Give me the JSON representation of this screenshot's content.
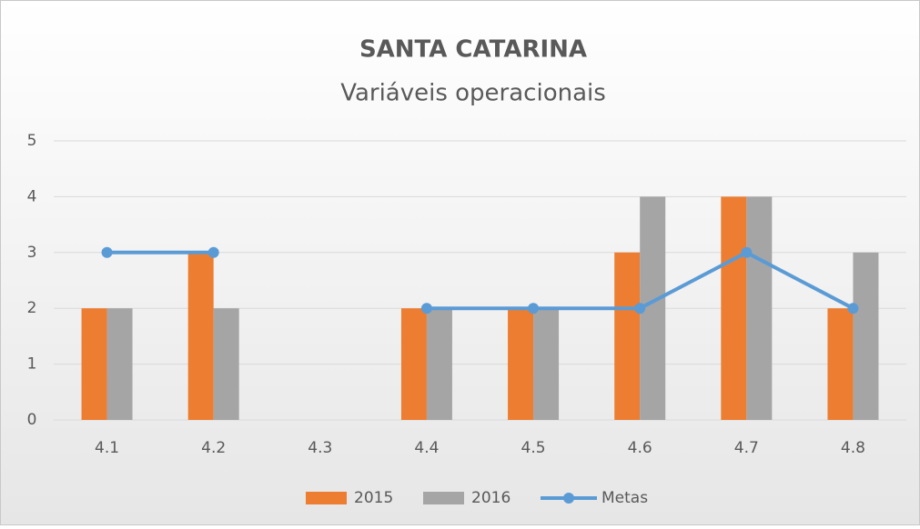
{
  "chart_data": {
    "type": "bar",
    "title": "SANTA CATARINA",
    "subtitle": "Variáveis operacionais",
    "categories": [
      "4.1",
      "4.2",
      "4.3",
      "4.4",
      "4.5",
      "4.6",
      "4.7",
      "4.8"
    ],
    "series": [
      {
        "name": "2015",
        "type": "bar",
        "color": "#ed7d31",
        "values": [
          2,
          3,
          null,
          2,
          2,
          3,
          4,
          2
        ]
      },
      {
        "name": "2016",
        "type": "bar",
        "color": "#a5a5a5",
        "values": [
          2,
          2,
          null,
          2,
          2,
          4,
          4,
          3
        ]
      },
      {
        "name": "Metas",
        "type": "line",
        "color": "#5b9bd5",
        "values": [
          3,
          3,
          null,
          2,
          2,
          2,
          3,
          2
        ]
      }
    ],
    "ylim": [
      0,
      5
    ],
    "yticks": [
      0,
      1,
      2,
      3,
      4,
      5
    ],
    "grid": true,
    "legend": "bottom"
  }
}
